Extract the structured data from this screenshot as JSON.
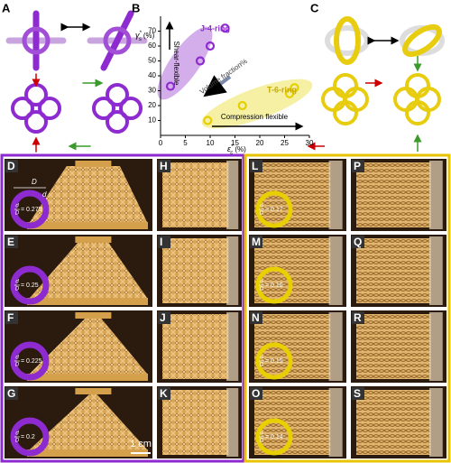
{
  "panel_labels": [
    "A",
    "B",
    "C",
    "D",
    "E",
    "F",
    "G",
    "H",
    "I",
    "J",
    "K",
    "L",
    "M",
    "N",
    "O",
    "P",
    "Q",
    "R",
    "S"
  ],
  "chart_data": {
    "type": "scatter",
    "y_label": {
      "symbol": "γ",
      "sup": "*",
      "sub": "s",
      "unit": "(%)"
    },
    "x_label": {
      "symbol": "ε",
      "sup": "*",
      "sub": "c",
      "unit": "(%)"
    },
    "xlim": [
      0,
      30
    ],
    "xticks": [
      0,
      5,
      10,
      15,
      20,
      25,
      30
    ],
    "ylim": [
      0,
      80
    ],
    "yticks": [
      10,
      20,
      30,
      40,
      50,
      60,
      70
    ],
    "series": [
      {
        "name": "J-4-ring",
        "color": "#8e2bd0",
        "x": [
          2,
          8,
          10,
          13
        ],
        "values": [
          33,
          50,
          60,
          72
        ]
      },
      {
        "name": "T-6-ring",
        "color": "#e6cf00",
        "x": [
          9.5,
          16.5,
          26,
          27
        ],
        "values": [
          10,
          20,
          28,
          32
        ]
      }
    ],
    "annotations": [
      "Shear-flexible",
      "Volume fraction%",
      "Compression flexible"
    ]
  },
  "dimension_labels": [
    "D",
    "d"
  ],
  "ratios": [
    {
      "num": "d",
      "den": "D",
      "value": "= 0.275"
    },
    {
      "num": "d",
      "den": "D",
      "value": "= 0.25"
    },
    {
      "num": "d",
      "den": "D",
      "value": "= 0.225"
    },
    {
      "num": "d",
      "den": "D",
      "value": "= 0.2"
    },
    {
      "num": "d",
      "den": "D",
      "value": "= 0.17"
    },
    {
      "num": "d",
      "den": "D",
      "value": "= 0.16"
    },
    {
      "num": "d",
      "den": "D",
      "value": "= 0.15"
    },
    {
      "num": "d",
      "den": "D",
      "value": "= 0.14"
    }
  ],
  "scale_bar": "1 cm"
}
